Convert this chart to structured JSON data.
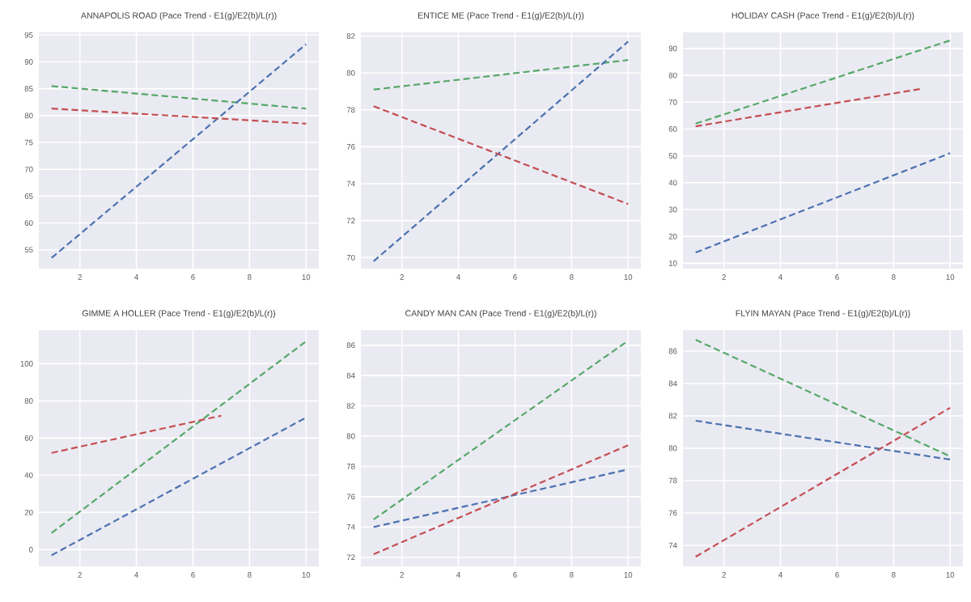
{
  "chart_data": [
    {
      "type": "line",
      "title": "ANNAPOLIS ROAD (Pace Trend - E1(g)/E2(b)/L(r))",
      "xlim": [
        0.55,
        10.45
      ],
      "ylim": [
        51.5,
        95.5
      ],
      "xticks": [
        2,
        4,
        6,
        8,
        10
      ],
      "yticks": [
        55,
        60,
        65,
        70,
        75,
        80,
        85,
        90,
        95
      ],
      "grid": true,
      "line_style": "dashed",
      "marker": "none",
      "series": [
        {
          "color": "#55a868",
          "x": [
            1,
            10
          ],
          "values": [
            85.5,
            81.3
          ]
        },
        {
          "color": "#4c72b0",
          "x": [
            1,
            10
          ],
          "values": [
            53.5,
            93.3
          ]
        },
        {
          "color": "#c44e52",
          "x": [
            1,
            10
          ],
          "values": [
            81.3,
            78.5
          ]
        }
      ]
    },
    {
      "type": "line",
      "title": "ENTICE ME (Pace Trend - E1(g)/E2(b)/L(r))",
      "xlim": [
        0.55,
        10.45
      ],
      "ylim": [
        69.4,
        82.2
      ],
      "xticks": [
        2,
        4,
        6,
        8,
        10
      ],
      "yticks": [
        70,
        72,
        74,
        76,
        78,
        80,
        82
      ],
      "grid": true,
      "line_style": "dashed",
      "marker": "none",
      "series": [
        {
          "color": "#55a868",
          "x": [
            1,
            10
          ],
          "values": [
            79.1,
            80.7
          ]
        },
        {
          "color": "#4c72b0",
          "x": [
            1,
            10
          ],
          "values": [
            69.8,
            81.7
          ]
        },
        {
          "color": "#c44e52",
          "x": [
            1,
            10
          ],
          "values": [
            78.2,
            72.9
          ]
        }
      ]
    },
    {
      "type": "line",
      "title": "HOLIDAY CASH (Pace Trend - E1(g)/E2(b)/L(r))",
      "xlim": [
        0.55,
        10.45
      ],
      "ylim": [
        8,
        96
      ],
      "xticks": [
        2,
        4,
        6,
        8,
        10
      ],
      "yticks": [
        10,
        20,
        30,
        40,
        50,
        60,
        70,
        80,
        90
      ],
      "grid": true,
      "line_style": "dashed",
      "marker": "none",
      "series": [
        {
          "color": "#55a868",
          "x": [
            1,
            10
          ],
          "values": [
            62,
            93
          ]
        },
        {
          "color": "#4c72b0",
          "x": [
            1,
            10
          ],
          "values": [
            14,
            51
          ]
        },
        {
          "color": "#c44e52",
          "x": [
            1,
            9
          ],
          "values": [
            61,
            75
          ]
        }
      ]
    },
    {
      "type": "line",
      "title": "GIMME A HOLLER (Pace Trend - E1(g)/E2(b)/L(r))",
      "xlim": [
        0.55,
        10.45
      ],
      "ylim": [
        -9,
        118
      ],
      "xticks": [
        2,
        4,
        6,
        8,
        10
      ],
      "yticks": [
        0,
        20,
        40,
        60,
        80,
        100
      ],
      "grid": true,
      "line_style": "dashed",
      "marker": "none",
      "series": [
        {
          "color": "#55a868",
          "x": [
            1,
            10
          ],
          "values": [
            9,
            112
          ]
        },
        {
          "color": "#4c72b0",
          "x": [
            1,
            10
          ],
          "values": [
            -3,
            71
          ]
        },
        {
          "color": "#c44e52",
          "x": [
            1,
            7
          ],
          "values": [
            52,
            72
          ]
        }
      ]
    },
    {
      "type": "line",
      "title": "CANDY MAN CAN (Pace Trend - E1(g)/E2(b)/L(r))",
      "xlim": [
        0.55,
        10.45
      ],
      "ylim": [
        71.4,
        87
      ],
      "xticks": [
        2,
        4,
        6,
        8,
        10
      ],
      "yticks": [
        72,
        74,
        76,
        78,
        80,
        82,
        84,
        86
      ],
      "grid": true,
      "line_style": "dashed",
      "marker": "none",
      "series": [
        {
          "color": "#55a868",
          "x": [
            1,
            10
          ],
          "values": [
            74.5,
            86.3
          ]
        },
        {
          "color": "#4c72b0",
          "x": [
            1,
            10
          ],
          "values": [
            74.0,
            77.8
          ]
        },
        {
          "color": "#c44e52",
          "x": [
            1,
            10
          ],
          "values": [
            72.2,
            79.4
          ]
        }
      ]
    },
    {
      "type": "line",
      "title": "FLYIN MAYAN (Pace Trend - E1(g)/E2(b)/L(r))",
      "xlim": [
        0.55,
        10.45
      ],
      "ylim": [
        72.7,
        87.3
      ],
      "xticks": [
        2,
        4,
        6,
        8,
        10
      ],
      "yticks": [
        74,
        76,
        78,
        80,
        82,
        84,
        86
      ],
      "grid": true,
      "line_style": "dashed",
      "marker": "none",
      "series": [
        {
          "color": "#55a868",
          "x": [
            1,
            10
          ],
          "values": [
            86.7,
            79.5
          ]
        },
        {
          "color": "#4c72b0",
          "x": [
            1,
            10
          ],
          "values": [
            81.7,
            79.3
          ]
        },
        {
          "color": "#c44e52",
          "x": [
            1,
            10
          ],
          "values": [
            73.3,
            82.5
          ]
        }
      ]
    }
  ]
}
